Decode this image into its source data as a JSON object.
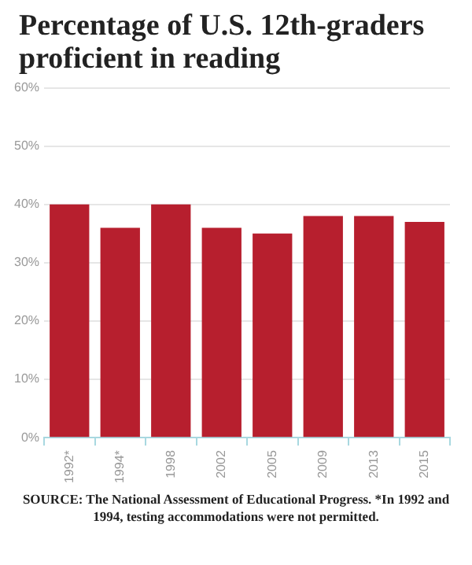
{
  "chart_data": {
    "type": "bar",
    "title": "Percentage of U.S. 12th-graders proficient in reading",
    "categories": [
      "1992*",
      "1994*",
      "1998",
      "2002",
      "2005",
      "2009",
      "2013",
      "2015"
    ],
    "values": [
      40,
      36,
      40,
      36,
      35,
      38,
      38,
      37
    ],
    "color": "#b71f2e",
    "ylim": [
      0,
      60
    ],
    "yticks": [
      {
        "value": 0,
        "label": "0%"
      },
      {
        "value": 10,
        "label": "10%"
      },
      {
        "value": 20,
        "label": "20%"
      },
      {
        "value": 30,
        "label": "30%"
      },
      {
        "value": 40,
        "label": "40%"
      },
      {
        "value": 50,
        "label": "50%"
      },
      {
        "value": 60,
        "label": "60%"
      }
    ],
    "grid": "y",
    "annotations": [
      "SOURCE: The National Assessment of Educational Progress. *In 1992 and 1994, testing accommodations were not permitted."
    ]
  }
}
